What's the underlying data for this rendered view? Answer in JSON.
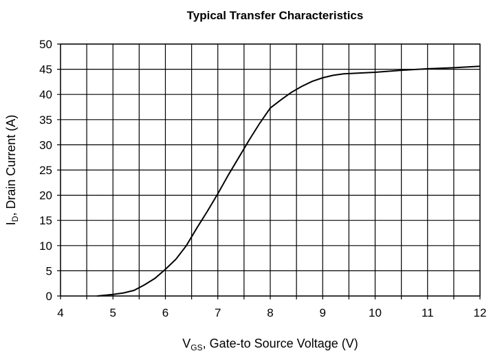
{
  "chart_data": {
    "type": "line",
    "title": "Typical Transfer Characteristics",
    "xlabel": {
      "main": "V",
      "sub": "GS",
      "rest": ", Gate-to Source Voltage (V)"
    },
    "ylabel": {
      "main": "I",
      "sub": "D",
      "rest": ", Drain Current (A)"
    },
    "xlim": [
      4,
      12
    ],
    "ylim": [
      0,
      50
    ],
    "x_ticks": [
      "4",
      "5",
      "6",
      "7",
      "8",
      "9",
      "10",
      "11",
      "12"
    ],
    "y_ticks": [
      "0",
      "5",
      "10",
      "15",
      "20",
      "25",
      "30",
      "35",
      "40",
      "45",
      "50"
    ],
    "grid": true,
    "series": [
      {
        "x": [
          4.7,
          4.8,
          5.0,
          5.2,
          5.4,
          5.6,
          5.8,
          6.0,
          6.2,
          6.4,
          6.6,
          6.8,
          7.0,
          7.2,
          7.4,
          7.6,
          7.8,
          8.0,
          8.2,
          8.4,
          8.6,
          8.8,
          9.0,
          9.2,
          9.4,
          9.6,
          9.8,
          10.0,
          10.5,
          11.0,
          11.5,
          12.0
        ],
        "y": [
          0.0,
          0.1,
          0.3,
          0.6,
          1.1,
          2.2,
          3.5,
          5.3,
          7.3,
          10.0,
          13.5,
          16.8,
          20.3,
          24.0,
          27.5,
          31.0,
          34.3,
          37.3,
          38.9,
          40.4,
          41.6,
          42.6,
          43.3,
          43.8,
          44.1,
          44.2,
          44.3,
          44.4,
          44.8,
          45.1,
          45.3,
          45.6
        ]
      }
    ]
  }
}
